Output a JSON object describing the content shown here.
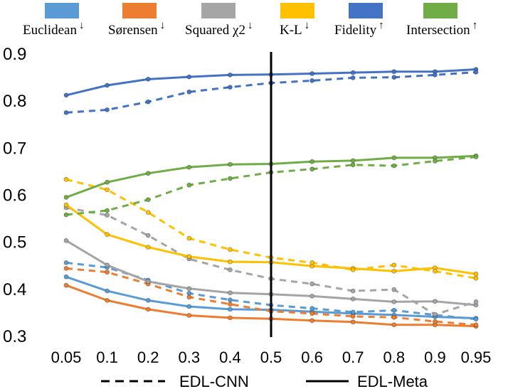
{
  "chart_data": {
    "type": "line",
    "title": "",
    "xlabel": "",
    "ylabel": "",
    "categories": [
      "0.05",
      "0.1",
      "0.2",
      "0.3",
      "0.4",
      "0.5",
      "0.6",
      "0.7",
      "0.8",
      "0.9",
      "0.95"
    ],
    "ylim": [
      0.3,
      0.9
    ],
    "yticks": [
      "0.3",
      "0.4",
      "0.5",
      "0.6",
      "0.7",
      "0.8",
      "0.9"
    ],
    "grid": false,
    "vertical_marker": {
      "category": "0.5"
    },
    "legend_top": [
      {
        "label": "Euclidean",
        "arrow": "↓",
        "color": "#5B9BD5"
      },
      {
        "label": "Sørensen",
        "arrow": "↓",
        "color": "#ED7D31"
      },
      {
        "label": "Squared χ2",
        "arrow": "↓",
        "color": "#A5A5A5"
      },
      {
        "label": "K-L",
        "arrow": "↓",
        "color": "#FFC000"
      },
      {
        "label": "Fidelity",
        "arrow": "↑",
        "color": "#4472C4"
      },
      {
        "label": "Intersection",
        "arrow": "↑",
        "color": "#70AD47"
      }
    ],
    "legend_bottom": [
      {
        "label": "EDL-CNN",
        "style": "dashed"
      },
      {
        "label": "EDL-Meta",
        "style": "solid"
      }
    ],
    "series": [
      {
        "name": "Euclidean (EDL-Meta)",
        "metric": "Euclidean",
        "method": "EDL-Meta",
        "color": "#5B9BD5",
        "values": [
          0.425,
          0.395,
          0.375,
          0.362,
          0.356,
          0.355,
          0.351,
          0.347,
          0.344,
          0.34,
          0.337
        ]
      },
      {
        "name": "Euclidean (EDL-CNN)",
        "metric": "Euclidean",
        "method": "EDL-CNN",
        "color": "#5B9BD5",
        "values": [
          0.455,
          0.445,
          0.418,
          0.39,
          0.376,
          0.365,
          0.358,
          0.35,
          0.354,
          0.344,
          0.335
        ]
      },
      {
        "name": "Sørensen (EDL-Meta)",
        "metric": "Sørensen",
        "method": "EDL-Meta",
        "color": "#ED7D31",
        "values": [
          0.407,
          0.375,
          0.356,
          0.343,
          0.338,
          0.336,
          0.332,
          0.329,
          0.323,
          0.323,
          0.32
        ]
      },
      {
        "name": "Sørensen (EDL-CNN)",
        "metric": "Sørensen",
        "method": "EDL-CNN",
        "color": "#ED7D31",
        "values": [
          0.443,
          0.435,
          0.41,
          0.382,
          0.367,
          0.352,
          0.347,
          0.341,
          0.339,
          0.33,
          0.323
        ]
      },
      {
        "name": "Squared χ2 (EDL-Meta)",
        "metric": "Squared χ2",
        "method": "EDL-Meta",
        "color": "#A5A5A5",
        "values": [
          0.502,
          0.45,
          0.415,
          0.4,
          0.391,
          0.388,
          0.384,
          0.378,
          0.372,
          0.373,
          0.365
        ]
      },
      {
        "name": "Squared χ2 (EDL-CNN)",
        "metric": "Squared χ2",
        "method": "EDL-CNN",
        "color": "#A5A5A5",
        "values": [
          0.572,
          0.556,
          0.513,
          0.463,
          0.44,
          0.421,
          0.41,
          0.395,
          0.398,
          0.345,
          0.372
        ]
      },
      {
        "name": "K-L (EDL-Meta)",
        "metric": "K-L",
        "method": "EDL-Meta",
        "color": "#FFC000",
        "values": [
          0.578,
          0.515,
          0.488,
          0.468,
          0.457,
          0.456,
          0.448,
          0.443,
          0.437,
          0.444,
          0.431
        ]
      },
      {
        "name": "K-L (EDL-CNN)",
        "metric": "K-L",
        "method": "EDL-CNN",
        "color": "#FFC000",
        "values": [
          0.632,
          0.61,
          0.562,
          0.507,
          0.483,
          0.466,
          0.455,
          0.44,
          0.45,
          0.437,
          0.422
        ]
      },
      {
        "name": "Fidelity (EDL-Meta)",
        "metric": "Fidelity",
        "method": "EDL-Meta",
        "color": "#4472C4",
        "values": [
          0.811,
          0.832,
          0.845,
          0.85,
          0.854,
          0.855,
          0.857,
          0.859,
          0.861,
          0.861,
          0.866
        ]
      },
      {
        "name": "Fidelity (EDL-CNN)",
        "metric": "Fidelity",
        "method": "EDL-CNN",
        "color": "#4472C4",
        "values": [
          0.774,
          0.78,
          0.797,
          0.818,
          0.828,
          0.837,
          0.842,
          0.848,
          0.849,
          0.854,
          0.86
        ]
      },
      {
        "name": "Intersection (EDL-Meta)",
        "metric": "Intersection",
        "method": "EDL-Meta",
        "color": "#70AD47",
        "values": [
          0.594,
          0.626,
          0.645,
          0.658,
          0.664,
          0.665,
          0.67,
          0.672,
          0.678,
          0.678,
          0.682
        ]
      },
      {
        "name": "Intersection (EDL-CNN)",
        "metric": "Intersection",
        "method": "EDL-CNN",
        "color": "#70AD47",
        "values": [
          0.557,
          0.566,
          0.589,
          0.62,
          0.634,
          0.647,
          0.654,
          0.663,
          0.661,
          0.671,
          0.68
        ]
      }
    ]
  }
}
